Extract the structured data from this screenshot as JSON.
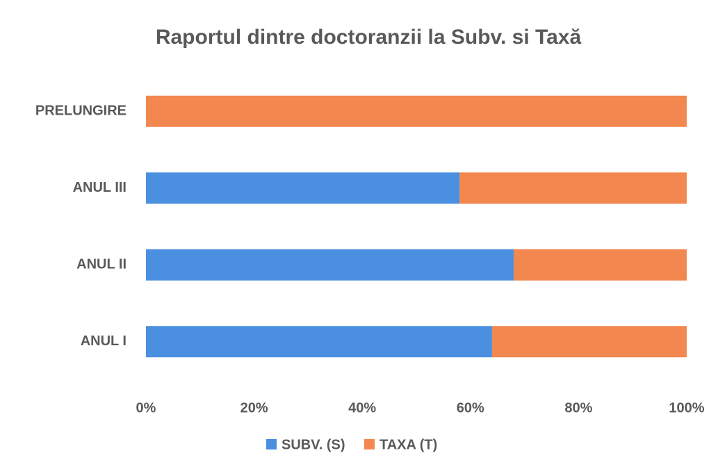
{
  "chart_data": {
    "type": "stacked-bar-horizontal",
    "title": "Raportul dintre doctoranzii la Subv. si Taxă",
    "categories": [
      "ANUL I",
      "ANUL II",
      "ANUL III",
      "PRELUNGIRE"
    ],
    "series": [
      {
        "name": "SUBV. (S)",
        "color": "#4a8fe0",
        "values": [
          64,
          68,
          58,
          0
        ]
      },
      {
        "name": "TAXA (T)",
        "color": "#f2874f",
        "values": [
          36,
          32,
          42,
          100
        ]
      }
    ],
    "xlim": [
      0,
      100
    ],
    "xticks": [
      {
        "value": 0,
        "label": "0%"
      },
      {
        "value": 20,
        "label": "20%"
      },
      {
        "value": 40,
        "label": "40%"
      },
      {
        "value": 60,
        "label": "60%"
      },
      {
        "value": 80,
        "label": "80%"
      },
      {
        "value": 100,
        "label": "100%"
      }
    ],
    "grid": false,
    "legend": "bottom"
  }
}
